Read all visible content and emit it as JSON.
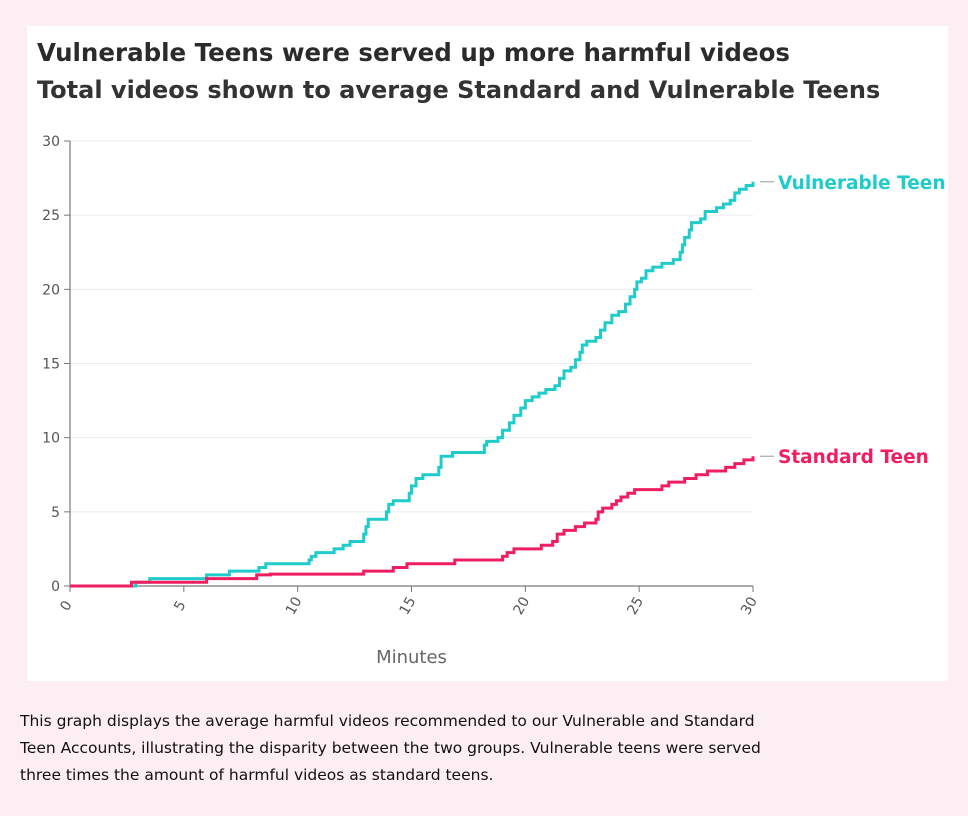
{
  "chart_data": {
    "type": "line",
    "title": "Vulnerable Teens were served up more harmful videos",
    "subtitle": "Total videos shown to average Standard and Vulnerable Teens",
    "xlabel": "Minutes",
    "ylabel": "",
    "xlim": [
      0,
      30
    ],
    "ylim": [
      0,
      30
    ],
    "x_ticks": [
      "0",
      "5",
      "10",
      "15",
      "20",
      "25",
      "30"
    ],
    "y_ticks": [
      "0",
      "5",
      "10",
      "15",
      "20",
      "25",
      "30"
    ],
    "grid": "horizontal",
    "legend": "direct labels at line ends (right)",
    "series": [
      {
        "name": "Vulnerable Teen",
        "color": "#1fcbcb",
        "step": true,
        "points": [
          [
            0,
            0
          ],
          [
            2.8,
            0
          ],
          [
            2.9,
            0.25
          ],
          [
            3.5,
            0.5
          ],
          [
            5.9,
            0.5
          ],
          [
            6,
            0.75
          ],
          [
            6.9,
            0.75
          ],
          [
            7,
            1
          ],
          [
            8.2,
            1
          ],
          [
            8.3,
            1.25
          ],
          [
            8.5,
            1.25
          ],
          [
            8.6,
            1.5
          ],
          [
            10.4,
            1.5
          ],
          [
            10.5,
            1.75
          ],
          [
            10.6,
            2
          ],
          [
            10.8,
            2.25
          ],
          [
            11.5,
            2.25
          ],
          [
            11.6,
            2.5
          ],
          [
            12,
            2.75
          ],
          [
            12.3,
            3
          ],
          [
            12.8,
            3
          ],
          [
            12.9,
            3.5
          ],
          [
            13,
            4
          ],
          [
            13.1,
            4.5
          ],
          [
            13.8,
            4.5
          ],
          [
            13.9,
            5
          ],
          [
            14,
            5.5
          ],
          [
            14.2,
            5.75
          ],
          [
            14.8,
            5.75
          ],
          [
            14.9,
            6.25
          ],
          [
            15,
            6.75
          ],
          [
            15.2,
            7.25
          ],
          [
            15.5,
            7.5
          ],
          [
            16.1,
            7.5
          ],
          [
            16.2,
            8
          ],
          [
            16.3,
            8.75
          ],
          [
            16.7,
            8.75
          ],
          [
            16.8,
            9
          ],
          [
            18.1,
            9
          ],
          [
            18.2,
            9.5
          ],
          [
            18.3,
            9.75
          ],
          [
            18.7,
            9.75
          ],
          [
            18.8,
            10
          ],
          [
            19,
            10.5
          ],
          [
            19.3,
            11
          ],
          [
            19.5,
            11.5
          ],
          [
            19.8,
            12
          ],
          [
            20,
            12.5
          ],
          [
            20.3,
            12.75
          ],
          [
            20.6,
            13
          ],
          [
            20.9,
            13.25
          ],
          [
            21.3,
            13.5
          ],
          [
            21.5,
            14
          ],
          [
            21.7,
            14.5
          ],
          [
            22,
            14.75
          ],
          [
            22.2,
            15.25
          ],
          [
            22.4,
            15.75
          ],
          [
            22.5,
            16.25
          ],
          [
            22.7,
            16.5
          ],
          [
            23.1,
            16.75
          ],
          [
            23.3,
            17.25
          ],
          [
            23.5,
            17.75
          ],
          [
            23.8,
            18.25
          ],
          [
            24.1,
            18.5
          ],
          [
            24.4,
            19
          ],
          [
            24.6,
            19.5
          ],
          [
            24.8,
            20
          ],
          [
            24.9,
            20.5
          ],
          [
            25.1,
            20.75
          ],
          [
            25.3,
            21.25
          ],
          [
            25.6,
            21.5
          ],
          [
            26,
            21.75
          ],
          [
            26.5,
            22
          ],
          [
            26.8,
            22.5
          ],
          [
            26.9,
            23
          ],
          [
            27,
            23.5
          ],
          [
            27.2,
            24
          ],
          [
            27.3,
            24.5
          ],
          [
            27.7,
            24.75
          ],
          [
            27.9,
            25.25
          ],
          [
            28.4,
            25.5
          ],
          [
            28.7,
            25.75
          ],
          [
            29,
            26
          ],
          [
            29.2,
            26.5
          ],
          [
            29.4,
            26.75
          ],
          [
            29.7,
            27
          ],
          [
            30,
            27.25
          ]
        ]
      },
      {
        "name": "Standard Teen",
        "color": "#f01e60",
        "step": true,
        "points": [
          [
            0,
            0
          ],
          [
            2.6,
            0
          ],
          [
            2.7,
            0.25
          ],
          [
            5.9,
            0.25
          ],
          [
            6,
            0.5
          ],
          [
            8.1,
            0.5
          ],
          [
            8.2,
            0.75
          ],
          [
            8.7,
            0.75
          ],
          [
            8.8,
            0.8
          ],
          [
            12.8,
            0.8
          ],
          [
            12.9,
            1
          ],
          [
            14.1,
            1
          ],
          [
            14.2,
            1.25
          ],
          [
            14.7,
            1.25
          ],
          [
            14.8,
            1.5
          ],
          [
            16.8,
            1.5
          ],
          [
            16.9,
            1.75
          ],
          [
            18.9,
            1.75
          ],
          [
            19,
            2
          ],
          [
            19.2,
            2.25
          ],
          [
            19.5,
            2.5
          ],
          [
            20.6,
            2.5
          ],
          [
            20.7,
            2.75
          ],
          [
            21.2,
            3
          ],
          [
            21.4,
            3.5
          ],
          [
            21.7,
            3.75
          ],
          [
            22.2,
            4
          ],
          [
            22.6,
            4.25
          ],
          [
            23.1,
            4.5
          ],
          [
            23.2,
            5
          ],
          [
            23.4,
            5.25
          ],
          [
            23.8,
            5.5
          ],
          [
            24,
            5.75
          ],
          [
            24.2,
            6
          ],
          [
            24.5,
            6.25
          ],
          [
            24.8,
            6.5
          ],
          [
            25.9,
            6.5
          ],
          [
            26,
            6.75
          ],
          [
            26.3,
            7
          ],
          [
            26.9,
            7
          ],
          [
            27,
            7.25
          ],
          [
            27.5,
            7.5
          ],
          [
            28,
            7.75
          ],
          [
            28.8,
            8
          ],
          [
            29.2,
            8.25
          ],
          [
            29.6,
            8.5
          ],
          [
            30,
            8.75
          ]
        ]
      }
    ]
  },
  "caption": "This graph displays the average harmful videos recommended to our Vulnerable and Standard Teen Accounts, illustrating the disparity between the two groups. Vulnerable teens were served three times the amount of harmful videos as standard teens."
}
